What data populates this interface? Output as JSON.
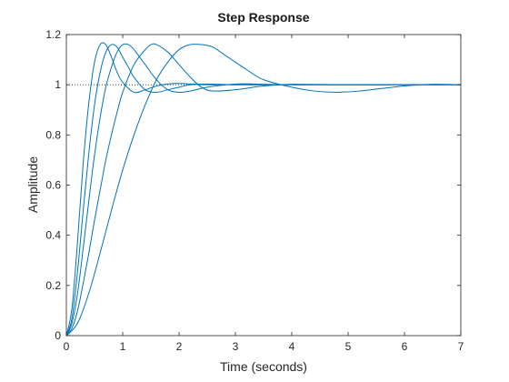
{
  "chart_data": {
    "type": "line",
    "title": "Step Response",
    "xlabel": "Time (seconds)",
    "ylabel": "Amplitude",
    "xlim": [
      0,
      7
    ],
    "ylim": [
      0,
      1.2
    ],
    "xticks": [
      0,
      1,
      2,
      3,
      4,
      5,
      6,
      7
    ],
    "yticks": [
      0,
      0.2,
      0.4,
      0.6,
      0.8,
      1,
      1.2
    ],
    "xtick_labels": [
      "0",
      "1",
      "2",
      "3",
      "4",
      "5",
      "6",
      "7"
    ],
    "ytick_labels": [
      "0",
      "0.2",
      "0.4",
      "0.6",
      "0.8",
      "1",
      "1.2"
    ],
    "grid": false,
    "reference_line": {
      "y": 1,
      "style": "dotted"
    },
    "line_color": "#0072BD",
    "series": [
      {
        "x": [
          0,
          0.1,
          0.2,
          0.3,
          0.4,
          0.5,
          0.6,
          0.7,
          0.8,
          0.9,
          1.0,
          1.2,
          1.4,
          1.6,
          1.8,
          2.0,
          2.5,
          3.0,
          4.0,
          5.0,
          6.0,
          7.0
        ],
        "values": [
          0,
          0.11,
          0.38,
          0.69,
          0.93,
          1.09,
          1.16,
          1.16,
          1.11,
          1.05,
          1.01,
          0.97,
          0.98,
          0.995,
          1.003,
          1.005,
          1.0,
          1.0,
          1.0,
          1.0,
          1.0,
          1.0
        ]
      },
      {
        "x": [
          0,
          0.1,
          0.2,
          0.3,
          0.4,
          0.5,
          0.6,
          0.7,
          0.8,
          0.9,
          1.0,
          1.1,
          1.2,
          1.4,
          1.6,
          1.8,
          2.0,
          2.2,
          2.5,
          3.0,
          4.0,
          5.0,
          6.0,
          7.0
        ],
        "values": [
          0,
          0.07,
          0.26,
          0.5,
          0.73,
          0.92,
          1.05,
          1.13,
          1.16,
          1.15,
          1.11,
          1.07,
          1.03,
          0.98,
          0.97,
          0.98,
          0.99,
          1.0,
          1.003,
          1.0,
          1.0,
          1.0,
          1.0,
          1.0
        ]
      },
      {
        "x": [
          0,
          0.1,
          0.2,
          0.3,
          0.4,
          0.5,
          0.6,
          0.7,
          0.8,
          0.9,
          1.0,
          1.1,
          1.2,
          1.4,
          1.6,
          1.8,
          2.0,
          2.2,
          2.5,
          3.0,
          3.5,
          4.0,
          5.0,
          6.0,
          7.0
        ],
        "values": [
          0,
          0.05,
          0.17,
          0.35,
          0.54,
          0.72,
          0.87,
          0.99,
          1.07,
          1.13,
          1.16,
          1.16,
          1.14,
          1.08,
          1.02,
          0.98,
          0.97,
          0.975,
          0.99,
          1.003,
          1.002,
          1.0,
          1.0,
          1.0,
          1.0
        ]
      },
      {
        "x": [
          0,
          0.1,
          0.2,
          0.3,
          0.4,
          0.5,
          0.6,
          0.7,
          0.8,
          0.9,
          1.0,
          1.2,
          1.4,
          1.5,
          1.6,
          1.8,
          2.0,
          2.2,
          2.4,
          2.6,
          3.0,
          3.5,
          4.0,
          5.0,
          6.0,
          7.0
        ],
        "values": [
          0,
          0.03,
          0.1,
          0.21,
          0.33,
          0.46,
          0.58,
          0.7,
          0.8,
          0.89,
          0.97,
          1.08,
          1.14,
          1.16,
          1.16,
          1.13,
          1.08,
          1.03,
          0.99,
          0.975,
          0.98,
          0.995,
          1.002,
          1.0,
          1.0,
          1.0
        ]
      },
      {
        "x": [
          0,
          0.2,
          0.4,
          0.6,
          0.8,
          1.0,
          1.2,
          1.4,
          1.6,
          1.8,
          2.0,
          2.2,
          2.4,
          2.6,
          2.8,
          3.0,
          3.2,
          3.5,
          4.0,
          4.4,
          4.8,
          5.2,
          5.6,
          6.0,
          6.5,
          7.0
        ],
        "values": [
          0,
          0.05,
          0.17,
          0.33,
          0.5,
          0.66,
          0.8,
          0.92,
          1.02,
          1.09,
          1.14,
          1.16,
          1.16,
          1.15,
          1.12,
          1.09,
          1.06,
          1.02,
          0.99,
          0.975,
          0.97,
          0.975,
          0.985,
          0.995,
          1.002,
          1.0
        ]
      }
    ]
  }
}
